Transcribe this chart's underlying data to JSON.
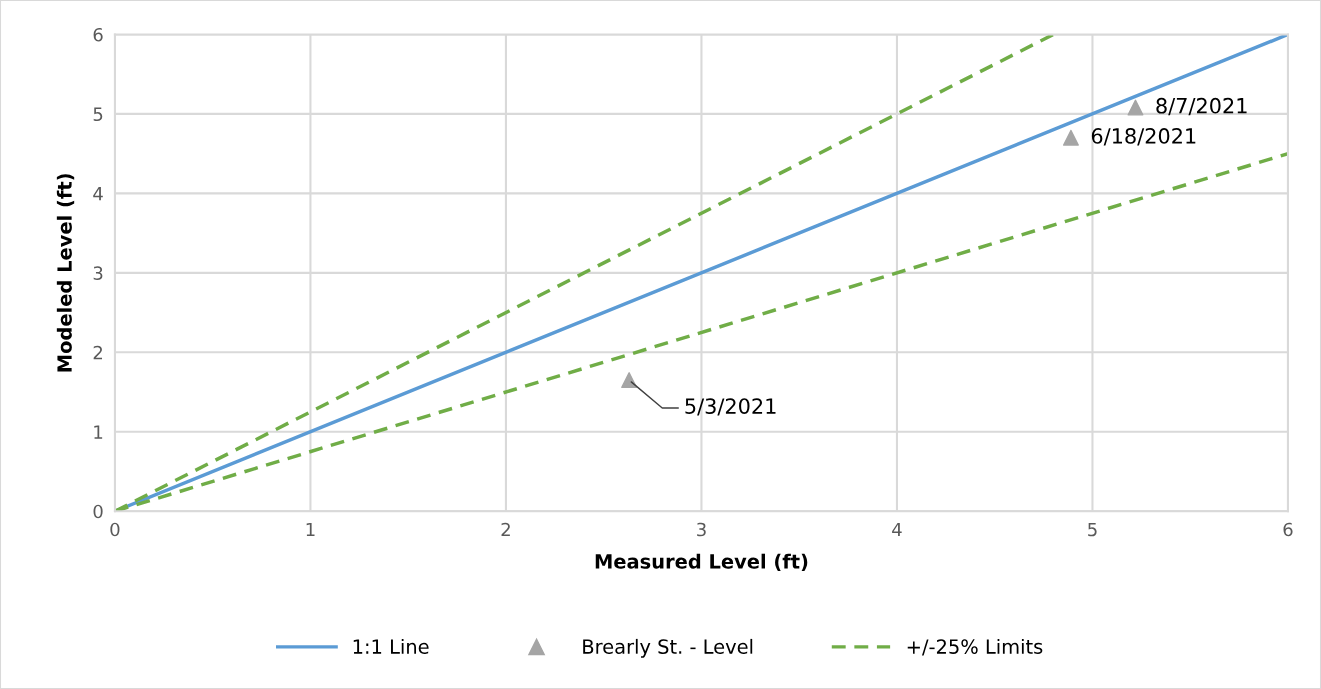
{
  "chart_data": {
    "type": "line",
    "xlabel": "Measured Level (ft)",
    "ylabel": "Modeled Level (ft)",
    "xlim": [
      0,
      6
    ],
    "ylim": [
      0,
      6
    ],
    "xticks": [
      0,
      1,
      2,
      3,
      4,
      5,
      6
    ],
    "yticks": [
      0,
      1,
      2,
      3,
      4,
      5,
      6
    ],
    "grid": true,
    "legend": "bottom",
    "series": [
      {
        "name": "1:1 Line",
        "color": "#5b9bd5",
        "line_style": "solid",
        "x": [
          0,
          6
        ],
        "values": [
          0,
          6
        ]
      },
      {
        "name": "Brearly St. - Level",
        "type": "scatter",
        "color": "#a5a5a5",
        "marker": "triangle",
        "x": [
          2.63,
          4.89,
          5.22
        ],
        "values": [
          1.65,
          4.7,
          5.08
        ]
      },
      {
        "name": "+/-25% Limits",
        "color": "#70ad47",
        "line_style": "dashed",
        "x": [
          0,
          6
        ],
        "values": [
          0,
          4.5
        ]
      },
      {
        "color": "#70ad47",
        "line_style": "dashed",
        "x": [
          0,
          4.8
        ],
        "values": [
          0,
          6
        ]
      }
    ],
    "annotations": [
      {
        "text": "5/3/2021",
        "x": 2.63,
        "y": 1.65
      },
      {
        "text": "6/18/2021",
        "x": 4.89,
        "y": 4.7
      },
      {
        "text": "8/7/2021",
        "x": 5.22,
        "y": 5.08
      }
    ]
  }
}
